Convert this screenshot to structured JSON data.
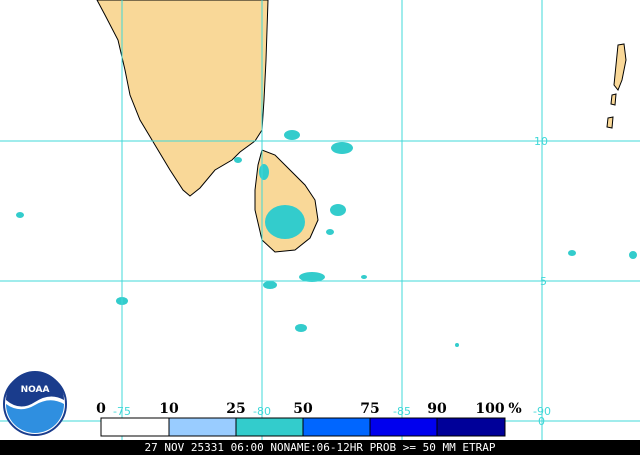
{
  "grid": {
    "lat_labels": [
      "10",
      "5",
      "0"
    ],
    "lon_labels": [
      "-75",
      "-80",
      "-85",
      "-90"
    ]
  },
  "legend": {
    "labels": [
      "0",
      "10",
      "25",
      "50",
      "75",
      "90",
      "100"
    ],
    "unit": "%"
  },
  "logo": {
    "text": "NOAA"
  },
  "footer": {
    "text": "27 NOV 25331 06:00 NONAME:06-12HR PROB >= 50 MM ETRAP"
  }
}
